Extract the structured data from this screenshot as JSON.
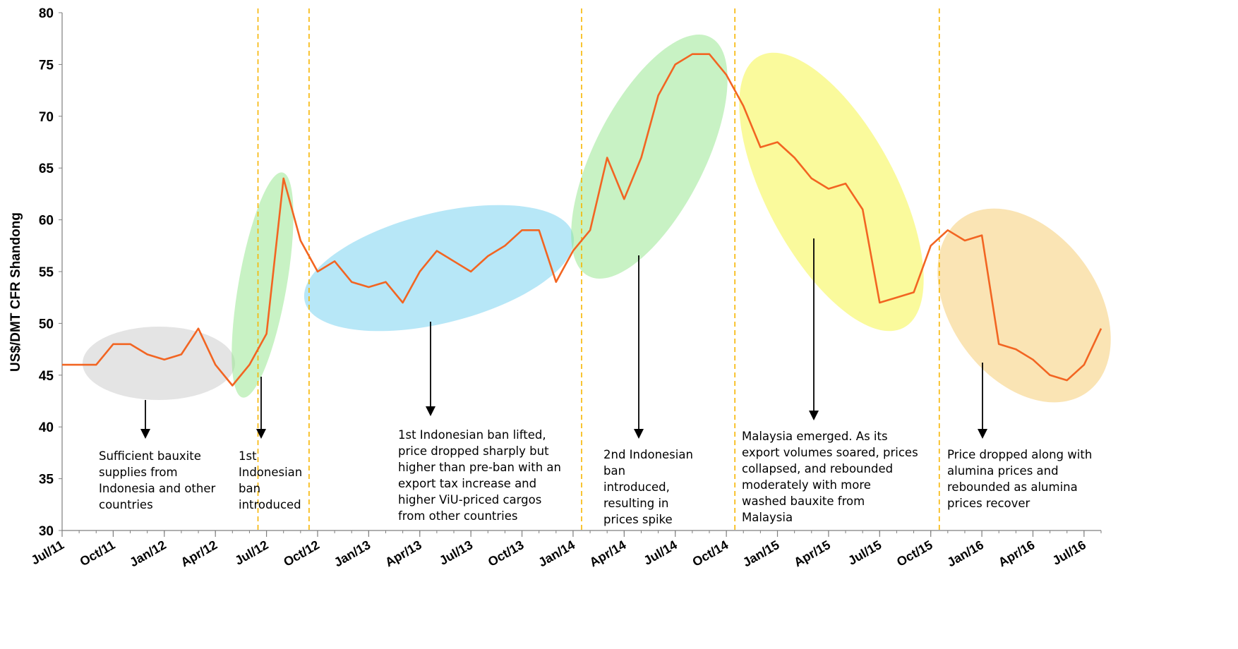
{
  "chart_data": {
    "type": "line",
    "title": "",
    "xlabel": "",
    "ylabel": "US$/DMT CFR Shandong",
    "ylim": [
      30,
      80
    ],
    "yticks": [
      30,
      35,
      40,
      45,
      50,
      55,
      60,
      65,
      70,
      75,
      80
    ],
    "xlim": [
      "2011-07",
      "2016-08"
    ],
    "xticks": [
      "Jul/11",
      "Oct/11",
      "Jan/12",
      "Apr/12",
      "Jul/12",
      "Oct/12",
      "Jan/13",
      "Apr/13",
      "Jul/13",
      "Oct/13",
      "Jan/14",
      "Apr/14",
      "Jul/14",
      "Oct/14",
      "Jan/15",
      "Apr/15",
      "Jul/15",
      "Oct/15",
      "Jan/16",
      "Apr/16",
      "Jul/16"
    ],
    "grid": false,
    "legend": "none",
    "line_color": "#f26522",
    "series": [
      {
        "x": [
          "2011-07",
          "2011-08",
          "2011-09",
          "2011-10",
          "2011-11",
          "2011-12",
          "2012-01",
          "2012-02",
          "2012-03",
          "2012-04",
          "2012-05",
          "2012-06",
          "2012-07",
          "2012-08",
          "2012-09",
          "2012-10",
          "2012-11",
          "2012-12",
          "2013-01",
          "2013-02",
          "2013-03",
          "2013-04",
          "2013-05",
          "2013-06",
          "2013-07",
          "2013-08",
          "2013-09",
          "2013-10",
          "2013-11",
          "2013-12",
          "2014-01",
          "2014-02",
          "2014-03",
          "2014-04",
          "2014-05",
          "2014-06",
          "2014-07",
          "2014-08",
          "2014-09",
          "2014-10",
          "2014-11",
          "2014-12",
          "2015-01",
          "2015-02",
          "2015-03",
          "2015-04",
          "2015-05",
          "2015-06",
          "2015-07",
          "2015-08",
          "2015-09",
          "2015-10",
          "2015-11",
          "2015-12",
          "2016-01",
          "2016-02",
          "2016-03",
          "2016-04",
          "2016-05",
          "2016-06",
          "2016-07",
          "2016-08"
        ],
        "values": [
          46,
          46,
          46,
          48,
          48,
          47,
          46.5,
          47,
          49.5,
          46,
          44,
          46,
          49,
          64,
          58,
          55,
          56,
          54,
          53.5,
          54,
          52,
          55,
          57,
          56,
          55,
          56.5,
          57.5,
          59,
          59,
          54,
          57,
          59,
          66,
          62,
          66,
          72,
          75,
          76,
          76,
          74,
          71,
          67,
          67.5,
          66,
          64,
          63,
          63.5,
          61,
          52,
          52.5,
          53,
          57.5,
          59,
          58,
          58.5,
          48,
          47.5,
          46.5,
          45,
          44.5,
          46,
          49.5
        ]
      }
    ],
    "dividers": [
      "2012-06",
      "2012-09",
      "2014-01",
      "2014-10",
      "2015-10"
    ],
    "divider_color": "#f7b500",
    "highlights": [
      {
        "color": "#c9c9c9",
        "label": "Sufficient bauxite supplies from Indonesia and other countries"
      },
      {
        "color": "#92e68a",
        "label": "1st Indonesian ban introduced"
      },
      {
        "color": "#6fd0f0",
        "label": "1st Indonesian ban lifted, price dropped sharply but higher than pre-ban with an export tax increase and higher ViU-priced cargos from other countries"
      },
      {
        "color": "#92e68a",
        "label": "2nd Indonesian ban introduced, resulting in prices spike"
      },
      {
        "color": "#f5f53a",
        "label": "Malaysia emerged. As its export volumes soared, prices collapsed, and rebounded moderately with more washed bauxite from Malaysia"
      },
      {
        "color": "#f6c96a",
        "label": "Price dropped along with alumina prices and rebounded as alumina prices recover"
      }
    ],
    "annotations": [
      {
        "lines": [
          "Sufficient bauxite",
          "supplies from",
          "Indonesia and other",
          "countries"
        ]
      },
      {
        "lines": [
          "1st",
          "Indonesian",
          "ban",
          "introduced"
        ]
      },
      {
        "lines": [
          "1st Indonesian ban lifted,",
          "price dropped sharply but",
          "higher than pre-ban with an",
          "export tax increase and",
          "higher ViU-priced cargos",
          "from other countries"
        ]
      },
      {
        "lines": [
          "2nd Indonesian",
          "ban",
          "introduced,",
          "resulting in",
          "prices spike"
        ]
      },
      {
        "lines": [
          "Malaysia emerged. As its",
          "export volumes soared, prices",
          "collapsed, and rebounded",
          "moderately with more",
          "washed bauxite from",
          "Malaysia"
        ]
      },
      {
        "lines": [
          "Price dropped along with",
          "alumina prices and",
          "rebounded as alumina",
          "prices recover"
        ]
      }
    ]
  }
}
